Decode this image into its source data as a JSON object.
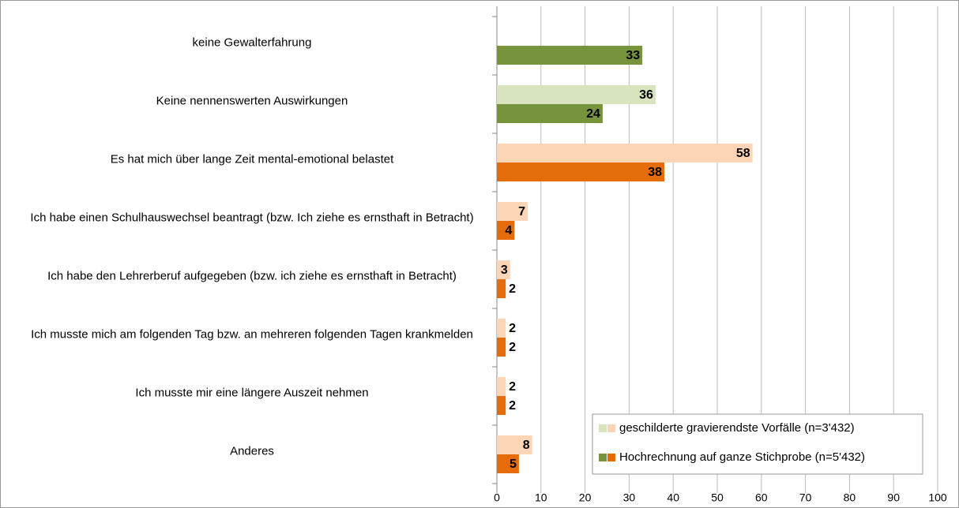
{
  "chart_data": {
    "type": "bar",
    "orientation": "horizontal",
    "categories": [
      "keine Gewalterfahrung",
      "Keine nennenswerten Auswirkungen",
      "Es hat mich über lange Zeit mental-emotional belastet",
      "Ich habe einen Schulhauswechsel beantragt (bzw. Ich ziehe es ernsthaft in Betracht)",
      "Ich habe den Lehrerberuf aufgegeben (bzw. ich ziehe es ernsthaft in Betracht)",
      "Ich musste mich am folgenden Tag bzw. an mehreren folgenden Tagen krankmelden",
      "Ich musste mir eine längere Auszeit nehmen",
      "Anderes"
    ],
    "series": [
      {
        "name": "geschilderte gravierendste Vorfälle (n=3'432)",
        "colors": [
          "#d7e4bd",
          "#d7e4bd",
          "#fbd5b5",
          "#fbd5b5",
          "#fbd5b5",
          "#fbd5b5",
          "#fbd5b5",
          "#fbd5b5"
        ],
        "values": [
          null,
          36,
          58,
          7,
          3,
          2,
          2,
          8
        ]
      },
      {
        "name": "Hochrechnung auf ganze Stichprobe (n=5'432)",
        "colors": [
          "#77933c",
          "#77933c",
          "#e46c0a",
          "#e46c0a",
          "#e46c0a",
          "#e46c0a",
          "#e46c0a",
          "#e46c0a"
        ],
        "values": [
          33,
          24,
          38,
          4,
          2,
          2,
          2,
          5
        ]
      }
    ],
    "xlim": [
      0,
      100
    ],
    "xticks": [
      0,
      10,
      20,
      30,
      40,
      50,
      60,
      70,
      80,
      90,
      100
    ],
    "grid": true,
    "legend": "lower right"
  }
}
